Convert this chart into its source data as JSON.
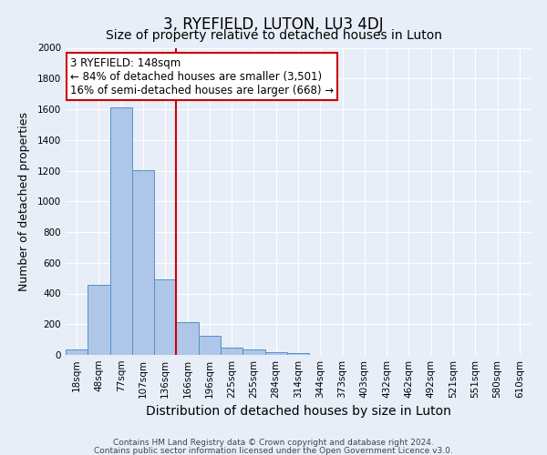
{
  "title": "3, RYEFIELD, LUTON, LU3 4DJ",
  "subtitle": "Size of property relative to detached houses in Luton",
  "xlabel": "Distribution of detached houses by size in Luton",
  "ylabel": "Number of detached properties",
  "footnote1": "Contains HM Land Registry data © Crown copyright and database right 2024.",
  "footnote2": "Contains public sector information licensed under the Open Government Licence v3.0.",
  "bin_labels": [
    "18sqm",
    "48sqm",
    "77sqm",
    "107sqm",
    "136sqm",
    "166sqm",
    "196sqm",
    "225sqm",
    "255sqm",
    "284sqm",
    "314sqm",
    "344sqm",
    "373sqm",
    "403sqm",
    "432sqm",
    "462sqm",
    "492sqm",
    "521sqm",
    "551sqm",
    "580sqm",
    "610sqm"
  ],
  "bar_values": [
    35,
    455,
    1610,
    1205,
    490,
    215,
    125,
    47,
    33,
    18,
    13,
    0,
    0,
    0,
    0,
    0,
    0,
    0,
    0,
    0,
    0
  ],
  "bar_color": "#aec6e8",
  "bar_edge_color": "#5590c8",
  "vline_x": 4.5,
  "vline_color": "#cc0000",
  "annotation_text": "3 RYEFIELD: 148sqm\n← 84% of detached houses are smaller (3,501)\n16% of semi-detached houses are larger (668) →",
  "annotation_box_color": "white",
  "annotation_box_edge_color": "#cc0000",
  "ylim": [
    0,
    2000
  ],
  "yticks": [
    0,
    200,
    400,
    600,
    800,
    1000,
    1200,
    1400,
    1600,
    1800,
    2000
  ],
  "background_color": "#e8eef8",
  "plot_bg_color": "#e8eef8",
  "title_fontsize": 12,
  "subtitle_fontsize": 10,
  "xlabel_fontsize": 10,
  "ylabel_fontsize": 9,
  "tick_fontsize": 7.5,
  "annotation_fontsize": 8.5,
  "footnote_fontsize": 6.5
}
